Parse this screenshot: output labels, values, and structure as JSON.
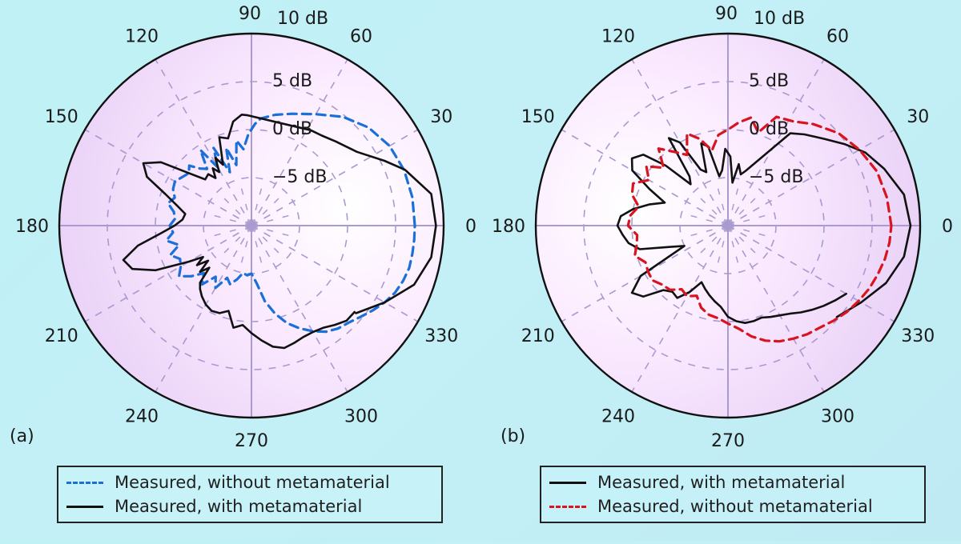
{
  "chart_data": [
    {
      "type": "polar-line",
      "panel_label": "(a)",
      "radial_unit": "dB",
      "radial_range": [
        -10,
        10
      ],
      "radial_ticks": [
        {
          "value": 10,
          "label": "10 dB"
        },
        {
          "value": 5,
          "label": "5 dB"
        },
        {
          "value": 0,
          "label": "0 dB"
        },
        {
          "value": -5,
          "label": "−5 dB"
        }
      ],
      "angular_ticks": [
        "0",
        "30",
        "60",
        "90",
        "120",
        "150",
        "180",
        "210",
        "240",
        "270",
        "300",
        "330"
      ],
      "grid": true,
      "legend": {
        "placement": "bottom",
        "entries": [
          {
            "label": "Measured, without metamaterial",
            "color": "#1a6fd8",
            "style": "dashed"
          },
          {
            "label": "Measured, with metamaterial",
            "color": "#111111",
            "style": "solid"
          }
        ]
      },
      "series": [
        {
          "name": "Measured, without metamaterial",
          "color": "#1a6fd8",
          "style": "dashed",
          "angles": [
            0,
            10,
            20,
            30,
            40,
            50,
            60,
            70,
            78,
            85,
            88,
            92,
            96,
            100,
            104,
            108,
            112,
            116,
            120,
            124,
            128,
            132,
            136,
            140,
            145,
            150,
            155,
            160,
            165,
            170,
            175,
            180,
            185,
            190,
            195,
            200,
            205,
            210,
            215,
            220,
            225,
            230,
            235,
            240,
            245,
            250,
            255,
            260,
            265,
            270,
            275,
            280,
            285,
            290,
            295,
            300,
            305,
            310,
            315,
            320,
            325,
            330,
            335,
            340,
            345,
            350,
            355,
            360
          ],
          "values": [
            7.0,
            7.0,
            6.9,
            6.6,
            5.9,
            4.8,
            3.4,
            2.4,
            1.8,
            1.2,
            0.6,
            -0.5,
            -2.0,
            -1.0,
            -3.5,
            -1.5,
            -4.0,
            -1.0,
            -3.0,
            -0.5,
            -2.5,
            -2.0,
            -1.0,
            -1.5,
            -1.2,
            -0.8,
            -1.0,
            -1.5,
            -1.0,
            -1.8,
            -2.0,
            -1.5,
            -1.8,
            -1.0,
            -2.2,
            -1.0,
            -1.8,
            -1.5,
            -0.8,
            -1.8,
            -3.0,
            -2.0,
            -3.5,
            -2.5,
            -4.0,
            -3.5,
            -4.2,
            -5.0,
            -4.8,
            -5.0,
            -4.0,
            -2.0,
            -0.5,
            0.8,
            1.8,
            2.7,
            3.5,
            4.0,
            4.3,
            4.8,
            5.4,
            6.0,
            6.5,
            6.8,
            7.0,
            7.0,
            7.0,
            7.0
          ]
        },
        {
          "name": "Measured, with metamaterial",
          "color": "#111111",
          "style": "solid",
          "angles": [
            -40,
            -30,
            -20,
            -10,
            0,
            10,
            20,
            26,
            35,
            45,
            52,
            58,
            92,
            95,
            100,
            105,
            110,
            115,
            118,
            121,
            124,
            127,
            130,
            135,
            140,
            145,
            150,
            155,
            160,
            165,
            170,
            175,
            180,
            185,
            190,
            195,
            200,
            205,
            210,
            213,
            216,
            219,
            222,
            225,
            228,
            231,
            235,
            240,
            245,
            250,
            255,
            260,
            265,
            270,
            275,
            280,
            285,
            290,
            295,
            300,
            305,
            310,
            315,
            320
          ],
          "values": [
            4.2,
            6.0,
            8.0,
            9.0,
            9.2,
            9.0,
            7.0,
            5.4,
            3.4,
            2.4,
            1.9,
            1.7,
            1.5,
            1.6,
            1.0,
            -0.6,
            -0.2,
            -3.0,
            -2.0,
            -3.5,
            -2.8,
            -3.8,
            -3.0,
            -3.2,
            -1.5,
            1.5,
            3.0,
            2.0,
            -0.5,
            -2.0,
            -3.0,
            -2.8,
            -2.0,
            -0.5,
            2.0,
            3.8,
            3.2,
            1.0,
            -2.5,
            -4.0,
            -3.0,
            -4.2,
            -2.8,
            -3.8,
            -2.0,
            -1.5,
            -1.0,
            -0.5,
            -0.2,
            -0.3,
            -0.8,
            0.8,
            0.4,
            1.2,
            2.0,
            2.8,
            3.2,
            3.0,
            2.8,
            2.8,
            3.0,
            3.5,
            4.0,
            4.0
          ]
        }
      ]
    },
    {
      "type": "polar-line",
      "panel_label": "(b)",
      "radial_unit": "dB",
      "radial_range": [
        -10,
        10
      ],
      "radial_ticks": [
        {
          "value": 10,
          "label": "10 dB"
        },
        {
          "value": 5,
          "label": "5 dB"
        },
        {
          "value": 0,
          "label": "0 dB"
        },
        {
          "value": -5,
          "label": "−5 dB"
        }
      ],
      "angular_ticks": [
        "0",
        "30",
        "60",
        "90",
        "120",
        "150",
        "180",
        "210",
        "240",
        "270",
        "300",
        "330"
      ],
      "grid": true,
      "legend": {
        "placement": "bottom",
        "entries": [
          {
            "label": "Measured, with metamaterial",
            "color": "#111111",
            "style": "solid"
          },
          {
            "label": "Measured, without metamaterial",
            "color": "#d8141e",
            "style": "dashed"
          }
        ]
      },
      "series": [
        {
          "name": "Measured, with metamaterial",
          "color": "#111111",
          "style": "solid",
          "angles": [
            -40,
            -30,
            -20,
            -10,
            0,
            10,
            20,
            28,
            35,
            42,
            50,
            56,
            72,
            76,
            80,
            84,
            88,
            92,
            96,
            100,
            104,
            108,
            112,
            116,
            120,
            124,
            128,
            132,
            136,
            140,
            145,
            150,
            155,
            160,
            165,
            170,
            175,
            180,
            185,
            190,
            195,
            200,
            205,
            210,
            215,
            220,
            225,
            230,
            235,
            240,
            245,
            250,
            255,
            260,
            265,
            270,
            275,
            280,
            285,
            290,
            295,
            300,
            305,
            310,
            315,
            320,
            325,
            330
          ],
          "values": [
            4.8,
            6.0,
            7.5,
            8.6,
            9.0,
            8.6,
            7.3,
            6.2,
            4.8,
            3.5,
            2.4,
            1.6,
            -4.0,
            -4.5,
            -3.5,
            -5.5,
            -2.8,
            -2.0,
            -4.2,
            -4.8,
            -1.5,
            -1.0,
            -4.0,
            -3.5,
            0.0,
            1.0,
            -3.5,
            -4.2,
            -1.0,
            1.5,
            2.2,
            1.5,
            -1.0,
            -3.0,
            -1.5,
            0.0,
            1.2,
            1.5,
            1.0,
            0.5,
            -0.5,
            -3.5,
            -5.0,
            0.5,
            2.2,
            1.5,
            -0.5,
            -1.0,
            -0.8,
            -2.0,
            -3.5,
            -3.0,
            -2.5,
            -2.0,
            -1.5,
            -0.5,
            0.0,
            0.3,
            0.3,
            0.2,
            0.5,
            0.8,
            1.2,
            1.8,
            2.4,
            3.0,
            3.6,
            4.2
          ]
        },
        {
          "name": "Measured, without metamaterial",
          "color": "#d8141e",
          "style": "dashed",
          "angles": [
            0,
            10,
            20,
            30,
            40,
            50,
            58,
            66,
            72,
            78,
            84,
            90,
            96,
            102,
            108,
            114,
            120,
            126,
            132,
            138,
            144,
            150,
            156,
            162,
            168,
            174,
            180,
            186,
            192,
            198,
            204,
            210,
            216,
            222,
            228,
            234,
            240,
            246,
            252,
            258,
            264,
            270,
            276,
            282,
            288,
            294,
            300,
            306,
            312,
            318,
            324,
            330,
            336,
            342,
            348,
            354,
            360
          ],
          "values": [
            7.0,
            6.8,
            6.5,
            5.8,
            5.0,
            3.8,
            2.8,
            2.4,
            0.2,
            1.5,
            0.8,
            0.0,
            -0.5,
            -2.0,
            -0.5,
            0.5,
            -1.5,
            -0.5,
            0.8,
            -1.0,
            0.5,
            -0.5,
            0.8,
            0.5,
            -0.5,
            0.2,
            0.4,
            -0.5,
            -0.3,
            0.2,
            -0.6,
            -0.4,
            -0.3,
            -0.8,
            -1.0,
            -1.8,
            -1.5,
            -2.0,
            -1.0,
            -0.5,
            -0.3,
            0.2,
            0.8,
            1.8,
            2.6,
            3.2,
            3.6,
            4.0,
            4.3,
            4.8,
            5.3,
            5.7,
            6.1,
            6.4,
            6.7,
            6.9,
            7.0
          ]
        }
      ]
    }
  ]
}
